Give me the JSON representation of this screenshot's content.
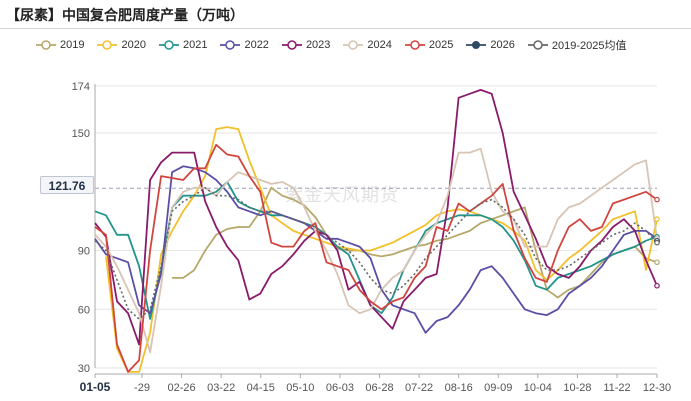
{
  "title": "【尿素】中国复合肥周度产量（万吨）",
  "watermark": "紫金天风期货",
  "cursor_value": "121.76",
  "chart_data": {
    "type": "line",
    "title": "【尿素】中国复合肥周度产量（万吨）",
    "xlabel": "",
    "ylabel": "",
    "ylim": [
      30,
      174
    ],
    "y_ticks": [
      30,
      60,
      90,
      121.76,
      150,
      174
    ],
    "x_tick_labels": [
      "01-05",
      "-29",
      "02-26",
      "03-22",
      "04-15",
      "05-10",
      "06-03",
      "06-28",
      "07-22",
      "08-16",
      "09-09",
      "10-04",
      "10-28",
      "11-22",
      "12-30"
    ],
    "grid": "horizontal",
    "legend_position": "top",
    "x_weeks": [
      1,
      2,
      3,
      4,
      5,
      6,
      7,
      8,
      9,
      10,
      11,
      12,
      13,
      14,
      15,
      16,
      17,
      18,
      19,
      20,
      21,
      22,
      23,
      24,
      25,
      26,
      27,
      28,
      29,
      30,
      31,
      32,
      33,
      34,
      35,
      36,
      37,
      38,
      39,
      40,
      41,
      42,
      43,
      44,
      45,
      46,
      47,
      48,
      49,
      50,
      51,
      52
    ],
    "series": [
      {
        "name": "2019",
        "color": "#b5a86a",
        "values": [
          null,
          null,
          null,
          null,
          null,
          null,
          null,
          76,
          76,
          80,
          90,
          98,
          101,
          102,
          102,
          110,
          122,
          118,
          116,
          113,
          107,
          98,
          91,
          90,
          90,
          88,
          87,
          88,
          90,
          92,
          93,
          95,
          96,
          98,
          100,
          104,
          106,
          108,
          110,
          112,
          90,
          70,
          66,
          70,
          72,
          78,
          84,
          88,
          90,
          92,
          86,
          84
        ]
      },
      {
        "name": "2020",
        "color": "#f2c02a",
        "values": [
          null,
          87,
          40,
          28,
          28,
          48,
          88,
          100,
          110,
          118,
          128,
          152,
          153,
          152,
          136,
          122,
          108,
          104,
          100,
          98,
          96,
          94,
          92,
          91,
          90,
          90,
          92,
          94,
          97,
          100,
          103,
          108,
          110,
          111,
          110,
          108,
          106,
          104,
          100,
          95,
          80,
          75,
          80,
          86,
          90,
          95,
          100,
          106,
          108,
          110,
          80,
          106
        ]
      },
      {
        "name": "2021",
        "color": "#22948d",
        "values": [
          110,
          108,
          98,
          98,
          82,
          55,
          80,
          112,
          118,
          118,
          118,
          120,
          125,
          115,
          112,
          110,
          108,
          108,
          106,
          104,
          102,
          98,
          92,
          88,
          75,
          62,
          58,
          66,
          80,
          90,
          100,
          104,
          106,
          108,
          108,
          108,
          106,
          102,
          95,
          85,
          72,
          70,
          76,
          78,
          80,
          82,
          85,
          88,
          90,
          92,
          95,
          97
        ]
      },
      {
        "name": "2022",
        "color": "#5a4fa6",
        "values": [
          96,
          88,
          86,
          84,
          62,
          58,
          78,
          130,
          133,
          132,
          130,
          126,
          120,
          112,
          110,
          108,
          110,
          108,
          106,
          104,
          100,
          96,
          96,
          94,
          92,
          86,
          70,
          62,
          60,
          58,
          48,
          54,
          56,
          62,
          70,
          80,
          82,
          76,
          68,
          60,
          58,
          57,
          60,
          68,
          72,
          76,
          82,
          90,
          98,
          100,
          100,
          96
        ]
      },
      {
        "name": "2023",
        "color": "#8a1a6b",
        "values": [
          104,
          97,
          64,
          58,
          42,
          126,
          135,
          140,
          140,
          140,
          115,
          102,
          92,
          85,
          65,
          68,
          78,
          82,
          88,
          95,
          100,
          98,
          90,
          70,
          74,
          62,
          56,
          50,
          64,
          70,
          76,
          78,
          112,
          168,
          170,
          172,
          170,
          150,
          120,
          108,
          96,
          82,
          78,
          76,
          82,
          90,
          95,
          102,
          106,
          100,
          85,
          72
        ]
      },
      {
        "name": "2024",
        "color": "#d7c4b4",
        "values": [
          98,
          92,
          82,
          70,
          58,
          38,
          72,
          112,
          120,
          122,
          122,
          118,
          125,
          130,
          128,
          126,
          124,
          125,
          122,
          112,
          100,
          90,
          78,
          62,
          58,
          60,
          70,
          76,
          80,
          90,
          98,
          104,
          118,
          140,
          140,
          142,
          120,
          110,
          106,
          92,
          92,
          92,
          106,
          112,
          114,
          118,
          122,
          126,
          130,
          134,
          136,
          96
        ]
      },
      {
        "name": "2025",
        "color": "#d1453f",
        "values": [
          102,
          98,
          42,
          28,
          34,
          90,
          128,
          127,
          126,
          132,
          132,
          144,
          139,
          138,
          128,
          120,
          94,
          92,
          92,
          100,
          104,
          84,
          82,
          80,
          70,
          64,
          60,
          64,
          66,
          76,
          82,
          102,
          100,
          114,
          110,
          114,
          118,
          124,
          100,
          86,
          76,
          74,
          90,
          102,
          106,
          100,
          102,
          114,
          116,
          118,
          120,
          116
        ]
      },
      {
        "name": "2026",
        "color": "#2e4a63",
        "values": [
          null,
          null,
          null,
          null,
          null,
          null,
          null,
          null,
          null,
          null,
          null,
          null,
          null,
          null,
          null,
          null,
          null,
          null,
          null,
          null,
          null,
          null,
          null,
          null,
          null,
          null,
          null,
          null,
          null,
          null,
          null,
          null,
          null,
          null,
          null,
          null,
          null,
          null,
          null,
          null,
          null,
          null,
          null,
          null,
          null,
          null,
          null,
          null,
          null,
          null,
          null,
          95
        ]
      },
      {
        "name": "2019-2025均值",
        "color": "#666666",
        "dashed": true,
        "values": [
          95,
          90,
          75,
          60,
          55,
          60,
          82,
          110,
          115,
          118,
          122,
          118,
          118,
          116,
          112,
          110,
          110,
          108,
          106,
          104,
          102,
          98,
          94,
          90,
          84,
          76,
          70,
          68,
          72,
          78,
          86,
          92,
          98,
          104,
          110,
          114,
          116,
          112,
          106,
          98,
          86,
          80,
          80,
          82,
          86,
          90,
          94,
          98,
          100,
          104,
          100,
          94
        ]
      }
    ]
  }
}
